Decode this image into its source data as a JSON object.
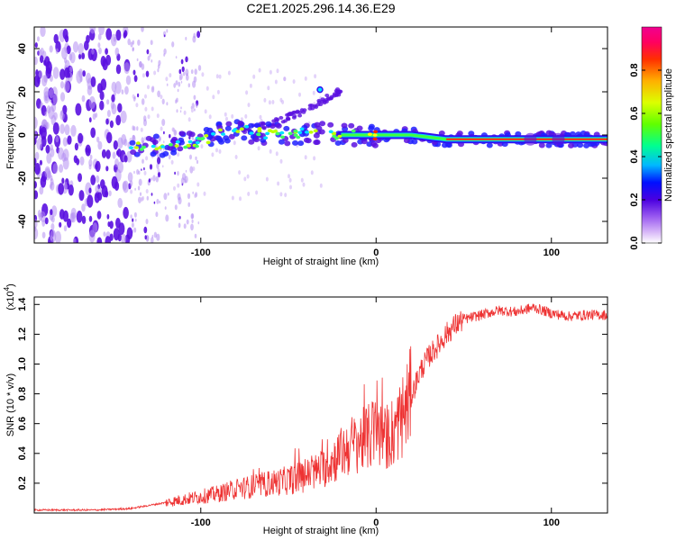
{
  "title": "C2E1.2025.296.14.36.E29",
  "chart_data": [
    {
      "type": "heatmap",
      "xlabel": "Height of straight line (km)",
      "ylabel": "Frequency (Hz)",
      "xlim": [
        -195,
        132
      ],
      "ylim": [
        -50,
        50
      ],
      "xticks": [
        -100,
        0,
        100
      ],
      "yticks": [
        -40,
        -20,
        0,
        20,
        40
      ],
      "colorbar": {
        "label": "Normalized spectral amplitude",
        "range": [
          0,
          1
        ],
        "ticks": [
          0.0,
          0.2,
          0.4,
          0.6,
          0.8
        ],
        "colors": [
          "#ffffff",
          "#b07cf0",
          "#5a10e0",
          "#0000ff",
          "#00c8ff",
          "#00ff64",
          "#b4ff00",
          "#ffff00",
          "#ff8000",
          "#ff0000",
          "#ff0096"
        ]
      },
      "ridge": {
        "description_points_x": [
          -140,
          -120,
          -100,
          -80,
          -60,
          -40,
          -20,
          0,
          20,
          40,
          60,
          80,
          100,
          132
        ],
        "description_points_y": [
          -5,
          -5,
          -3,
          3,
          0,
          1,
          0,
          0,
          0,
          -2,
          -2,
          -2,
          -2,
          -2
        ]
      }
    },
    {
      "type": "line",
      "xlabel": "Height of straight line (km)",
      "ylabel": "SNR (10 * v/v)",
      "yunit_multiplier": "(x10",
      "yunit_exponent": "4",
      "yunit_close": ")",
      "xlim": [
        -195,
        132
      ],
      "ylim": [
        0,
        1.45
      ],
      "xticks": [
        -100,
        0,
        100
      ],
      "yticks": [
        0.2,
        0.4,
        0.6,
        0.8,
        1.0,
        1.2,
        1.4
      ],
      "series": [
        {
          "name": "SNR",
          "color": "#ee3333",
          "x": [
            -195,
            -180,
            -160,
            -140,
            -130,
            -120,
            -110,
            -100,
            -90,
            -80,
            -70,
            -60,
            -50,
            -40,
            -30,
            -25,
            -20,
            -15,
            -10,
            -5,
            0,
            5,
            10,
            15,
            20,
            25,
            30,
            35,
            40,
            45,
            50,
            60,
            70,
            80,
            90,
            100,
            110,
            120,
            132
          ],
          "y": [
            0.02,
            0.02,
            0.02,
            0.03,
            0.05,
            0.07,
            0.09,
            0.11,
            0.13,
            0.16,
            0.18,
            0.2,
            0.22,
            0.25,
            0.3,
            0.35,
            0.4,
            0.45,
            0.48,
            0.5,
            0.55,
            0.5,
            0.55,
            0.65,
            0.78,
            0.95,
            1.05,
            1.12,
            1.2,
            1.26,
            1.3,
            1.33,
            1.36,
            1.35,
            1.38,
            1.34,
            1.32,
            1.33,
            1.33
          ]
        }
      ]
    }
  ]
}
